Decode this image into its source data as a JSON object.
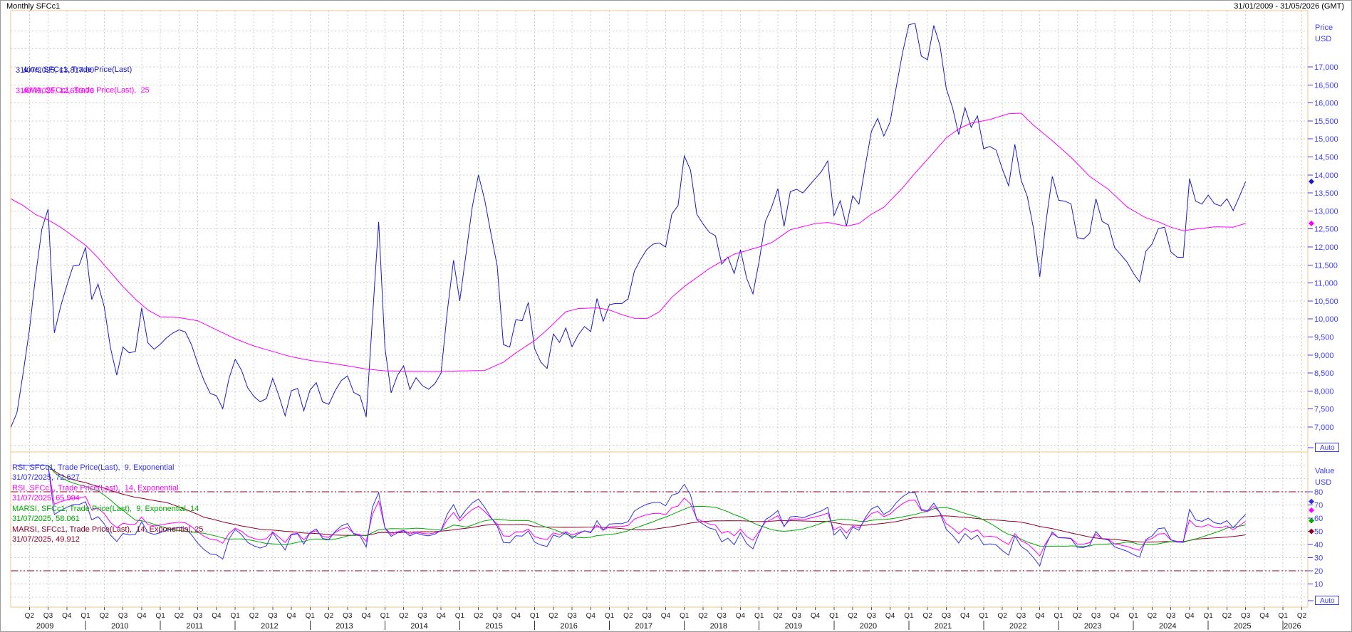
{
  "header": {
    "title": "Monthly SFCc1",
    "date_range": "31/01/2009 - 31/05/2026 (GMT)"
  },
  "colors": {
    "price_line": "#1a1acc",
    "sma_line": "#ff00ff",
    "rsi9_line": "#3333e6",
    "rsi14_line": "#ff00ff",
    "marsi9_line": "#00aa00",
    "marsi14_line": "#8b0028",
    "axis_text": "#3e3eff",
    "pane_border": "#f6c08b",
    "gridline": "#cccccc",
    "ref_line": "#8b0028"
  },
  "price_pane": {
    "axis_label": [
      "Price",
      "USD"
    ],
    "auto_label": "Auto",
    "y_axis": {
      "tick_values": [
        17000,
        16500,
        16000,
        15500,
        15000,
        14500,
        14000,
        13500,
        13000,
        12500,
        12000,
        11500,
        11000,
        10500,
        10000,
        9500,
        9000,
        8500,
        8000,
        7500,
        7000
      ],
      "tick_labels": [
        "17,000",
        "16,500",
        "16,000",
        "15,500",
        "15,000",
        "14,500",
        "14,000",
        "13,500",
        "13,000",
        "12,500",
        "12,000",
        "11,500",
        "11,000",
        "10,500",
        "10,000",
        "9,500",
        "9,000",
        "8,500",
        "8,000",
        "7,500",
        "7,000"
      ]
    },
    "legend": [
      {
        "label": "Line, SFCc1, Trade Price(Last)",
        "value": "31/07/2025, 13,817.00",
        "color": "#1a1acc"
      },
      {
        "label": "SMA, SFCc1, Trade Price(Last),  25",
        "value": "31/07/2025, 12,653.76",
        "color": "#ff00ff"
      }
    ],
    "markers": [
      {
        "v": 13817,
        "color": "#1a1acc"
      },
      {
        "v": 12653.76,
        "color": "#ff00ff"
      }
    ]
  },
  "rsi_pane": {
    "axis_label": [
      "Value",
      "USD"
    ],
    "auto_label": "Auto",
    "y_axis": {
      "tick_values": [
        80,
        70,
        60,
        50,
        40,
        30,
        20,
        10
      ],
      "tick_labels": [
        "80",
        "70",
        "60",
        "50",
        "40",
        "30",
        "20",
        "10"
      ]
    },
    "ref_levels": [
      80,
      20
    ],
    "legend": [
      {
        "label": "RSI, SFCc1, Trade Price(Last),  9, Exponential",
        "value": "31/07/2025, 72.627",
        "color": "#3333e6"
      },
      {
        "label": "RSI, SFCc1, Trade Price(Last),  14, Exponential",
        "value": "31/07/2025, 65.994",
        "color": "#ff00ff"
      },
      {
        "label": "MARSI, SFCc1, Trade Price(Last),  9, Exponential, 14",
        "value": "31/07/2025, 58.061",
        "color": "#00aa00"
      },
      {
        "label": "MARSI, SFCc1, Trade Price(Last),  14, Exponential, 25",
        "value": "31/07/2025, 49.912",
        "color": "#8b0028"
      }
    ],
    "markers": [
      {
        "v": 72.627,
        "color": "#3333e6"
      },
      {
        "v": 65.994,
        "color": "#ff00ff"
      },
      {
        "v": 58.061,
        "color": "#00aa00"
      },
      {
        "v": 49.912,
        "color": "#8b0028"
      }
    ]
  },
  "x_axis": {
    "quarters": [
      [
        3,
        "Q2"
      ],
      [
        6,
        "Q3"
      ],
      [
        9,
        "Q4"
      ],
      [
        12,
        "Q1"
      ],
      [
        15,
        "Q2"
      ],
      [
        18,
        "Q3"
      ],
      [
        21,
        "Q4"
      ],
      [
        24,
        "Q1"
      ],
      [
        27,
        "Q2"
      ],
      [
        30,
        "Q3"
      ],
      [
        33,
        "Q4"
      ],
      [
        36,
        "Q1"
      ],
      [
        39,
        "Q2"
      ],
      [
        42,
        "Q3"
      ],
      [
        45,
        "Q4"
      ],
      [
        48,
        "Q1"
      ],
      [
        51,
        "Q2"
      ],
      [
        54,
        "Q3"
      ],
      [
        57,
        "Q4"
      ],
      [
        60,
        "Q1"
      ],
      [
        63,
        "Q2"
      ],
      [
        66,
        "Q3"
      ],
      [
        69,
        "Q4"
      ],
      [
        72,
        "Q1"
      ],
      [
        75,
        "Q2"
      ],
      [
        78,
        "Q3"
      ],
      [
        81,
        "Q4"
      ],
      [
        84,
        "Q1"
      ],
      [
        87,
        "Q2"
      ],
      [
        90,
        "Q3"
      ],
      [
        93,
        "Q4"
      ],
      [
        96,
        "Q1"
      ],
      [
        99,
        "Q2"
      ],
      [
        102,
        "Q3"
      ],
      [
        105,
        "Q4"
      ],
      [
        108,
        "Q1"
      ],
      [
        111,
        "Q2"
      ],
      [
        114,
        "Q3"
      ],
      [
        117,
        "Q4"
      ],
      [
        120,
        "Q1"
      ],
      [
        123,
        "Q2"
      ],
      [
        126,
        "Q3"
      ],
      [
        129,
        "Q4"
      ],
      [
        132,
        "Q1"
      ],
      [
        135,
        "Q2"
      ],
      [
        138,
        "Q3"
      ],
      [
        141,
        "Q4"
      ],
      [
        144,
        "Q1"
      ],
      [
        147,
        "Q2"
      ],
      [
        150,
        "Q3"
      ],
      [
        153,
        "Q4"
      ],
      [
        156,
        "Q1"
      ],
      [
        159,
        "Q2"
      ],
      [
        162,
        "Q3"
      ],
      [
        165,
        "Q4"
      ],
      [
        168,
        "Q1"
      ],
      [
        171,
        "Q2"
      ],
      [
        174,
        "Q3"
      ],
      [
        177,
        "Q4"
      ],
      [
        180,
        "Q1"
      ],
      [
        183,
        "Q2"
      ],
      [
        186,
        "Q3"
      ],
      [
        189,
        "Q4"
      ],
      [
        192,
        "Q1"
      ],
      [
        195,
        "Q2"
      ],
      [
        198,
        "Q3"
      ],
      [
        201,
        "Q4"
      ],
      [
        204,
        "Q1"
      ],
      [
        207,
        "Q2"
      ]
    ],
    "years": [
      [
        "2009",
        5.5
      ],
      [
        "2010",
        17.5
      ],
      [
        "2011",
        29.5
      ],
      [
        "2012",
        41.5
      ],
      [
        "2013",
        53.5
      ],
      [
        "2014",
        65.5
      ],
      [
        "2015",
        77.5
      ],
      [
        "2016",
        89.5
      ],
      [
        "2017",
        101.5
      ],
      [
        "2018",
        113.5
      ],
      [
        "2019",
        125.5
      ],
      [
        "2020",
        137.5
      ],
      [
        "2021",
        149.5
      ],
      [
        "2022",
        161.5
      ],
      [
        "2023",
        173.5
      ],
      [
        "2024",
        185.5
      ],
      [
        "2025",
        197.5
      ],
      [
        "2026",
        205.5
      ]
    ],
    "year_separators_m": [
      12,
      24,
      36,
      48,
      60,
      72,
      84,
      96,
      108,
      120,
      132,
      144,
      156,
      168,
      180,
      192,
      204
    ]
  },
  "chart_data": {
    "type": "line",
    "title": "Monthly SFCc1",
    "x_unit": "month",
    "x_start": "2009-01",
    "x_data_end": "2025-07",
    "x_axis_end": "2026-05",
    "price_axis": {
      "grid_min": 6500,
      "grid_max": 18000,
      "grid_step": 500,
      "label_min": 7000,
      "label_max": 17000
    },
    "rsi_axis": {
      "grid_min": 0,
      "grid_max": 100,
      "grid_step": 10,
      "label_min": 10,
      "label_max": 80,
      "ref_lines": [
        80,
        20
      ]
    },
    "last_date": "31/07/2025",
    "last_values": {
      "price": 13817.0,
      "sma25": 12653.76,
      "rsi9": 72.627,
      "rsi14": 65.994,
      "marsi9_14": 58.061,
      "marsi14_25": 49.912
    },
    "series": [
      {
        "name": "Trade Price (Last), monthly",
        "pane": "price",
        "color": "#1a1acc",
        "monthly_values": [
          6980,
          7400,
          8500,
          9700,
          11200,
          12500,
          13050,
          9615,
          10340,
          10930,
          11470,
          11500,
          11990,
          10540,
          10970,
          10340,
          9200,
          8440,
          9220,
          9060,
          9100,
          10310,
          9340,
          9160,
          9300,
          9480,
          9610,
          9700,
          9640,
          9280,
          8750,
          8290,
          7930,
          7870,
          7510,
          8350,
          8880,
          8580,
          8090,
          7850,
          7700,
          7790,
          8350,
          7870,
          7310,
          8010,
          8070,
          7450,
          8030,
          8230,
          7700,
          7630,
          8000,
          8290,
          8420,
          7960,
          7870,
          7280,
          10000,
          12700,
          9200,
          7950,
          8430,
          8700,
          8040,
          8370,
          8150,
          8050,
          8200,
          8500,
          10200,
          11630,
          10500,
          11800,
          13100,
          14000,
          13300,
          12375,
          11470,
          9290,
          9220,
          9983,
          9950,
          10460,
          9175,
          8800,
          8625,
          9585,
          9350,
          9750,
          9230,
          9560,
          9790,
          9650,
          10570,
          9935,
          10400,
          10430,
          10430,
          10560,
          11330,
          11660,
          11930,
          12080,
          12110,
          12000,
          12910,
          13150,
          14530,
          14130,
          12910,
          12640,
          12410,
          12310,
          11525,
          11720,
          11265,
          11920,
          11130,
          10700,
          11600,
          12710,
          13100,
          13620,
          12570,
          13540,
          13600,
          13500,
          13700,
          13900,
          14100,
          14390,
          12870,
          13280,
          12580,
          13420,
          13190,
          14230,
          15210,
          15570,
          15080,
          15470,
          16460,
          17400,
          18170,
          18210,
          17300,
          17200,
          18150,
          17590,
          16400,
          15870,
          15120,
          15870,
          15320,
          15640,
          14730,
          14790,
          14690,
          14160,
          13700,
          14850,
          13860,
          13400,
          12500,
          11170,
          12710,
          13960,
          13300,
          13270,
          13200,
          12260,
          12220,
          12380,
          13340,
          12710,
          12610,
          11980,
          11780,
          11580,
          11270,
          11030,
          11880,
          12080,
          12510,
          12550,
          11870,
          11720,
          11710,
          13900,
          13270,
          13190,
          13440,
          13200,
          13140,
          13340,
          13010,
          13400,
          13817
        ]
      },
      {
        "name": "SMA 25",
        "pane": "price",
        "color": "#ff00ff",
        "keypoints": [
          [
            0,
            13340
          ],
          [
            2,
            13150
          ],
          [
            4,
            12900
          ],
          [
            6,
            12750
          ],
          [
            8,
            12550
          ],
          [
            10,
            12300
          ],
          [
            12,
            12050
          ],
          [
            14,
            11700
          ],
          [
            16,
            11300
          ],
          [
            18,
            10900
          ],
          [
            20,
            10550
          ],
          [
            22,
            10250
          ],
          [
            24,
            10060
          ],
          [
            27,
            10040
          ],
          [
            30,
            9950
          ],
          [
            33,
            9700
          ],
          [
            36,
            9450
          ],
          [
            39,
            9250
          ],
          [
            42,
            9100
          ],
          [
            45,
            8950
          ],
          [
            48,
            8850
          ],
          [
            51,
            8780
          ],
          [
            54,
            8700
          ],
          [
            57,
            8610
          ],
          [
            60,
            8560
          ],
          [
            64,
            8545
          ],
          [
            68,
            8540
          ],
          [
            72,
            8555
          ],
          [
            76,
            8570
          ],
          [
            79,
            8800
          ],
          [
            81,
            9060
          ],
          [
            84,
            9400
          ],
          [
            86,
            9700
          ],
          [
            89,
            10200
          ],
          [
            91,
            10290
          ],
          [
            94,
            10310
          ],
          [
            96,
            10250
          ],
          [
            98,
            10120
          ],
          [
            100,
            10020
          ],
          [
            102,
            10010
          ],
          [
            104,
            10200
          ],
          [
            106,
            10600
          ],
          [
            108,
            10900
          ],
          [
            110,
            11150
          ],
          [
            112,
            11400
          ],
          [
            114,
            11600
          ],
          [
            116,
            11800
          ],
          [
            118,
            11900
          ],
          [
            120,
            12000
          ],
          [
            122,
            12120
          ],
          [
            125,
            12480
          ],
          [
            129,
            12650
          ],
          [
            131,
            12680
          ],
          [
            134,
            12580
          ],
          [
            136,
            12650
          ],
          [
            138,
            12910
          ],
          [
            140,
            13100
          ],
          [
            143,
            13640
          ],
          [
            145,
            14050
          ],
          [
            148,
            14630
          ],
          [
            150,
            15030
          ],
          [
            152,
            15280
          ],
          [
            154,
            15440
          ],
          [
            157,
            15540
          ],
          [
            160,
            15700
          ],
          [
            162,
            15715
          ],
          [
            164,
            15380
          ],
          [
            167,
            14950
          ],
          [
            170,
            14490
          ],
          [
            173,
            13960
          ],
          [
            176,
            13600
          ],
          [
            179,
            13110
          ],
          [
            182,
            12810
          ],
          [
            184,
            12700
          ],
          [
            186,
            12550
          ],
          [
            188,
            12450
          ],
          [
            190,
            12500
          ],
          [
            193,
            12560
          ],
          [
            196,
            12550
          ],
          [
            198,
            12654
          ]
        ]
      },
      {
        "name": "RSI 9 Exponential",
        "pane": "rsi",
        "color": "#3333e6",
        "derive": {
          "type": "rsi",
          "period": 9,
          "source": "price"
        }
      },
      {
        "name": "RSI 14 Exponential",
        "pane": "rsi",
        "color": "#ff00ff",
        "derive": {
          "type": "rsi",
          "period": 14,
          "source": "price"
        }
      },
      {
        "name": "MARSI 9 Exponential 14",
        "pane": "rsi",
        "color": "#00aa00",
        "derive": {
          "type": "sma_of_rsi",
          "rsi_period": 9,
          "ma_period": 14
        }
      },
      {
        "name": "MARSI 14 Exponential 25",
        "pane": "rsi",
        "color": "#8b0028",
        "derive": {
          "type": "sma_of_rsi",
          "rsi_period": 14,
          "ma_period": 25
        }
      }
    ]
  }
}
